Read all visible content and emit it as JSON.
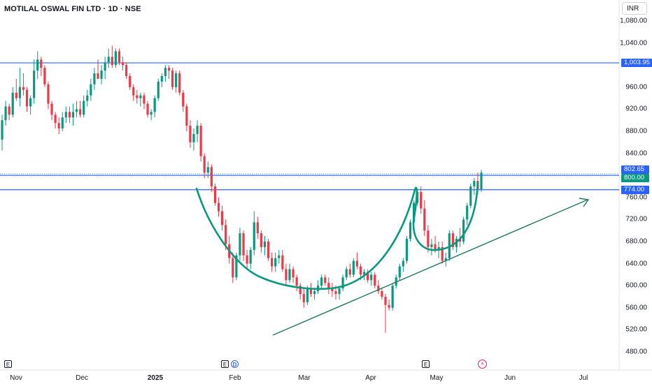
{
  "header": {
    "title": "MOTILAL OSWAL FIN LTD · 1D · NSE",
    "currency": "INR"
  },
  "chart_data": {
    "type": "candlestick",
    "y_ticks": [
      1080,
      1040,
      960,
      920,
      880,
      840,
      760,
      720,
      680,
      640,
      600,
      560,
      520,
      480
    ],
    "y_tick_labels": [
      "1,080.00",
      "1,040.00",
      "960.00",
      "920.00",
      "880.00",
      "840.00",
      "760.00",
      "720.00",
      "680.00",
      "640.00",
      "600.00",
      "560.00",
      "520.00",
      "480.00"
    ],
    "x_labels": [
      "Nov",
      "Dec",
      "2025",
      "Feb",
      "Mar",
      "Apr",
      "May",
      "Jun",
      "Jul"
    ],
    "horizontal_levels": [
      {
        "value": 1003.95,
        "label": "1,003.95"
      },
      {
        "value": 774.0,
        "label": "774.00"
      },
      {
        "value": 800.0,
        "label": "800.00"
      }
    ],
    "last_price": {
      "value": 802.65,
      "label": "802.65"
    },
    "events": [
      "E",
      "E",
      "D",
      "E"
    ],
    "trendline": {
      "from": {
        "date": "2025-02-24",
        "price": 530
      },
      "to": {
        "date": "2025-06-24",
        "price": 768
      }
    },
    "candles": [
      [
        865,
        910,
        845,
        900
      ],
      [
        900,
        935,
        890,
        925
      ],
      [
        925,
        930,
        900,
        910
      ],
      [
        910,
        960,
        905,
        950
      ],
      [
        950,
        975,
        935,
        940
      ],
      [
        940,
        995,
        925,
        960
      ],
      [
        960,
        985,
        945,
        955
      ],
      [
        955,
        960,
        915,
        925
      ],
      [
        925,
        945,
        910,
        940
      ],
      [
        940,
        1010,
        930,
        990
      ],
      [
        990,
        1025,
        975,
        1010
      ],
      [
        1010,
        1015,
        980,
        995
      ],
      [
        995,
        1000,
        960,
        965
      ],
      [
        965,
        970,
        920,
        930
      ],
      [
        930,
        935,
        900,
        910
      ],
      [
        910,
        915,
        885,
        895
      ],
      [
        895,
        905,
        875,
        885
      ],
      [
        885,
        915,
        880,
        905
      ],
      [
        905,
        925,
        895,
        915
      ],
      [
        915,
        925,
        895,
        905
      ],
      [
        905,
        930,
        890,
        915
      ],
      [
        915,
        935,
        905,
        920
      ],
      [
        920,
        935,
        905,
        910
      ],
      [
        910,
        945,
        905,
        935
      ],
      [
        935,
        955,
        925,
        945
      ],
      [
        945,
        975,
        935,
        965
      ],
      [
        965,
        995,
        955,
        985
      ],
      [
        985,
        1010,
        975,
        975
      ],
      [
        975,
        1000,
        965,
        990
      ],
      [
        990,
        1015,
        975,
        1005
      ],
      [
        1005,
        1030,
        995,
        1015
      ],
      [
        1015,
        1035,
        995,
        1000
      ],
      [
        1000,
        1030,
        995,
        1025
      ],
      [
        1025,
        1030,
        1000,
        1005
      ],
      [
        1005,
        1015,
        990,
        1000
      ],
      [
        1000,
        1005,
        975,
        980
      ],
      [
        980,
        985,
        955,
        960
      ],
      [
        960,
        965,
        935,
        945
      ],
      [
        945,
        955,
        930,
        940
      ],
      [
        940,
        950,
        925,
        945
      ],
      [
        945,
        950,
        920,
        930
      ],
      [
        930,
        935,
        905,
        910
      ],
      [
        910,
        920,
        900,
        915
      ],
      [
        915,
        945,
        905,
        940
      ],
      [
        940,
        975,
        935,
        970
      ],
      [
        970,
        985,
        960,
        980
      ],
      [
        980,
        1000,
        970,
        995
      ],
      [
        995,
        1000,
        975,
        990
      ],
      [
        990,
        995,
        955,
        960
      ],
      [
        960,
        990,
        950,
        985
      ],
      [
        985,
        990,
        945,
        950
      ],
      [
        950,
        955,
        915,
        925
      ],
      [
        925,
        930,
        880,
        890
      ],
      [
        890,
        900,
        850,
        860
      ],
      [
        860,
        885,
        845,
        875
      ],
      [
        875,
        900,
        860,
        890
      ],
      [
        890,
        895,
        825,
        835
      ],
      [
        835,
        840,
        795,
        805
      ],
      [
        805,
        825,
        795,
        815
      ],
      [
        815,
        820,
        770,
        780
      ],
      [
        780,
        785,
        745,
        750
      ],
      [
        750,
        760,
        725,
        735
      ],
      [
        735,
        745,
        700,
        710
      ],
      [
        710,
        720,
        665,
        675
      ],
      [
        675,
        690,
        640,
        650
      ],
      [
        650,
        660,
        605,
        615
      ],
      [
        615,
        660,
        610,
        655
      ],
      [
        655,
        705,
        645,
        695
      ],
      [
        695,
        700,
        645,
        655
      ],
      [
        655,
        665,
        630,
        640
      ],
      [
        640,
        670,
        630,
        665
      ],
      [
        665,
        735,
        655,
        715
      ],
      [
        715,
        725,
        685,
        695
      ],
      [
        695,
        700,
        660,
        670
      ],
      [
        670,
        690,
        655,
        680
      ],
      [
        680,
        685,
        645,
        650
      ],
      [
        650,
        660,
        625,
        635
      ],
      [
        635,
        660,
        625,
        650
      ],
      [
        650,
        665,
        640,
        655
      ],
      [
        655,
        665,
        625,
        630
      ],
      [
        630,
        640,
        600,
        610
      ],
      [
        610,
        640,
        605,
        630
      ],
      [
        630,
        635,
        605,
        615
      ],
      [
        615,
        620,
        590,
        600
      ],
      [
        600,
        605,
        575,
        585
      ],
      [
        585,
        595,
        560,
        570
      ],
      [
        570,
        600,
        565,
        595
      ],
      [
        595,
        605,
        580,
        585
      ],
      [
        585,
        595,
        575,
        590
      ],
      [
        590,
        610,
        585,
        600
      ],
      [
        600,
        620,
        595,
        615
      ],
      [
        615,
        620,
        600,
        605
      ],
      [
        605,
        615,
        585,
        595
      ],
      [
        595,
        605,
        580,
        590
      ],
      [
        590,
        600,
        575,
        585
      ],
      [
        585,
        600,
        575,
        595
      ],
      [
        595,
        620,
        590,
        615
      ],
      [
        615,
        635,
        610,
        630
      ],
      [
        630,
        640,
        615,
        620
      ],
      [
        620,
        650,
        615,
        645
      ],
      [
        645,
        660,
        630,
        635
      ],
      [
        635,
        640,
        610,
        620
      ],
      [
        620,
        630,
        610,
        625
      ],
      [
        625,
        630,
        605,
        610
      ],
      [
        610,
        625,
        600,
        620
      ],
      [
        620,
        625,
        595,
        600
      ],
      [
        600,
        610,
        585,
        590
      ],
      [
        590,
        595,
        575,
        580
      ],
      [
        580,
        585,
        515,
        565
      ],
      [
        565,
        575,
        555,
        560
      ],
      [
        560,
        605,
        555,
        600
      ],
      [
        600,
        620,
        595,
        615
      ],
      [
        615,
        640,
        610,
        635
      ],
      [
        635,
        650,
        625,
        645
      ],
      [
        645,
        690,
        640,
        685
      ],
      [
        685,
        720,
        680,
        715
      ],
      [
        715,
        755,
        710,
        750
      ],
      [
        750,
        775,
        745,
        770
      ],
      [
        770,
        780,
        730,
        740
      ],
      [
        740,
        755,
        690,
        700
      ],
      [
        700,
        710,
        660,
        670
      ],
      [
        670,
        685,
        655,
        675
      ],
      [
        675,
        690,
        660,
        665
      ],
      [
        665,
        680,
        650,
        670
      ],
      [
        670,
        680,
        640,
        645
      ],
      [
        645,
        660,
        635,
        650
      ],
      [
        650,
        700,
        645,
        695
      ],
      [
        695,
        700,
        665,
        670
      ],
      [
        670,
        690,
        660,
        685
      ],
      [
        685,
        705,
        670,
        680
      ],
      [
        680,
        725,
        675,
        720
      ],
      [
        720,
        750,
        710,
        745
      ],
      [
        745,
        785,
        740,
        780
      ],
      [
        780,
        795,
        765,
        790
      ],
      [
        790,
        805,
        765,
        775
      ],
      [
        775,
        810,
        770,
        805
      ]
    ]
  }
}
